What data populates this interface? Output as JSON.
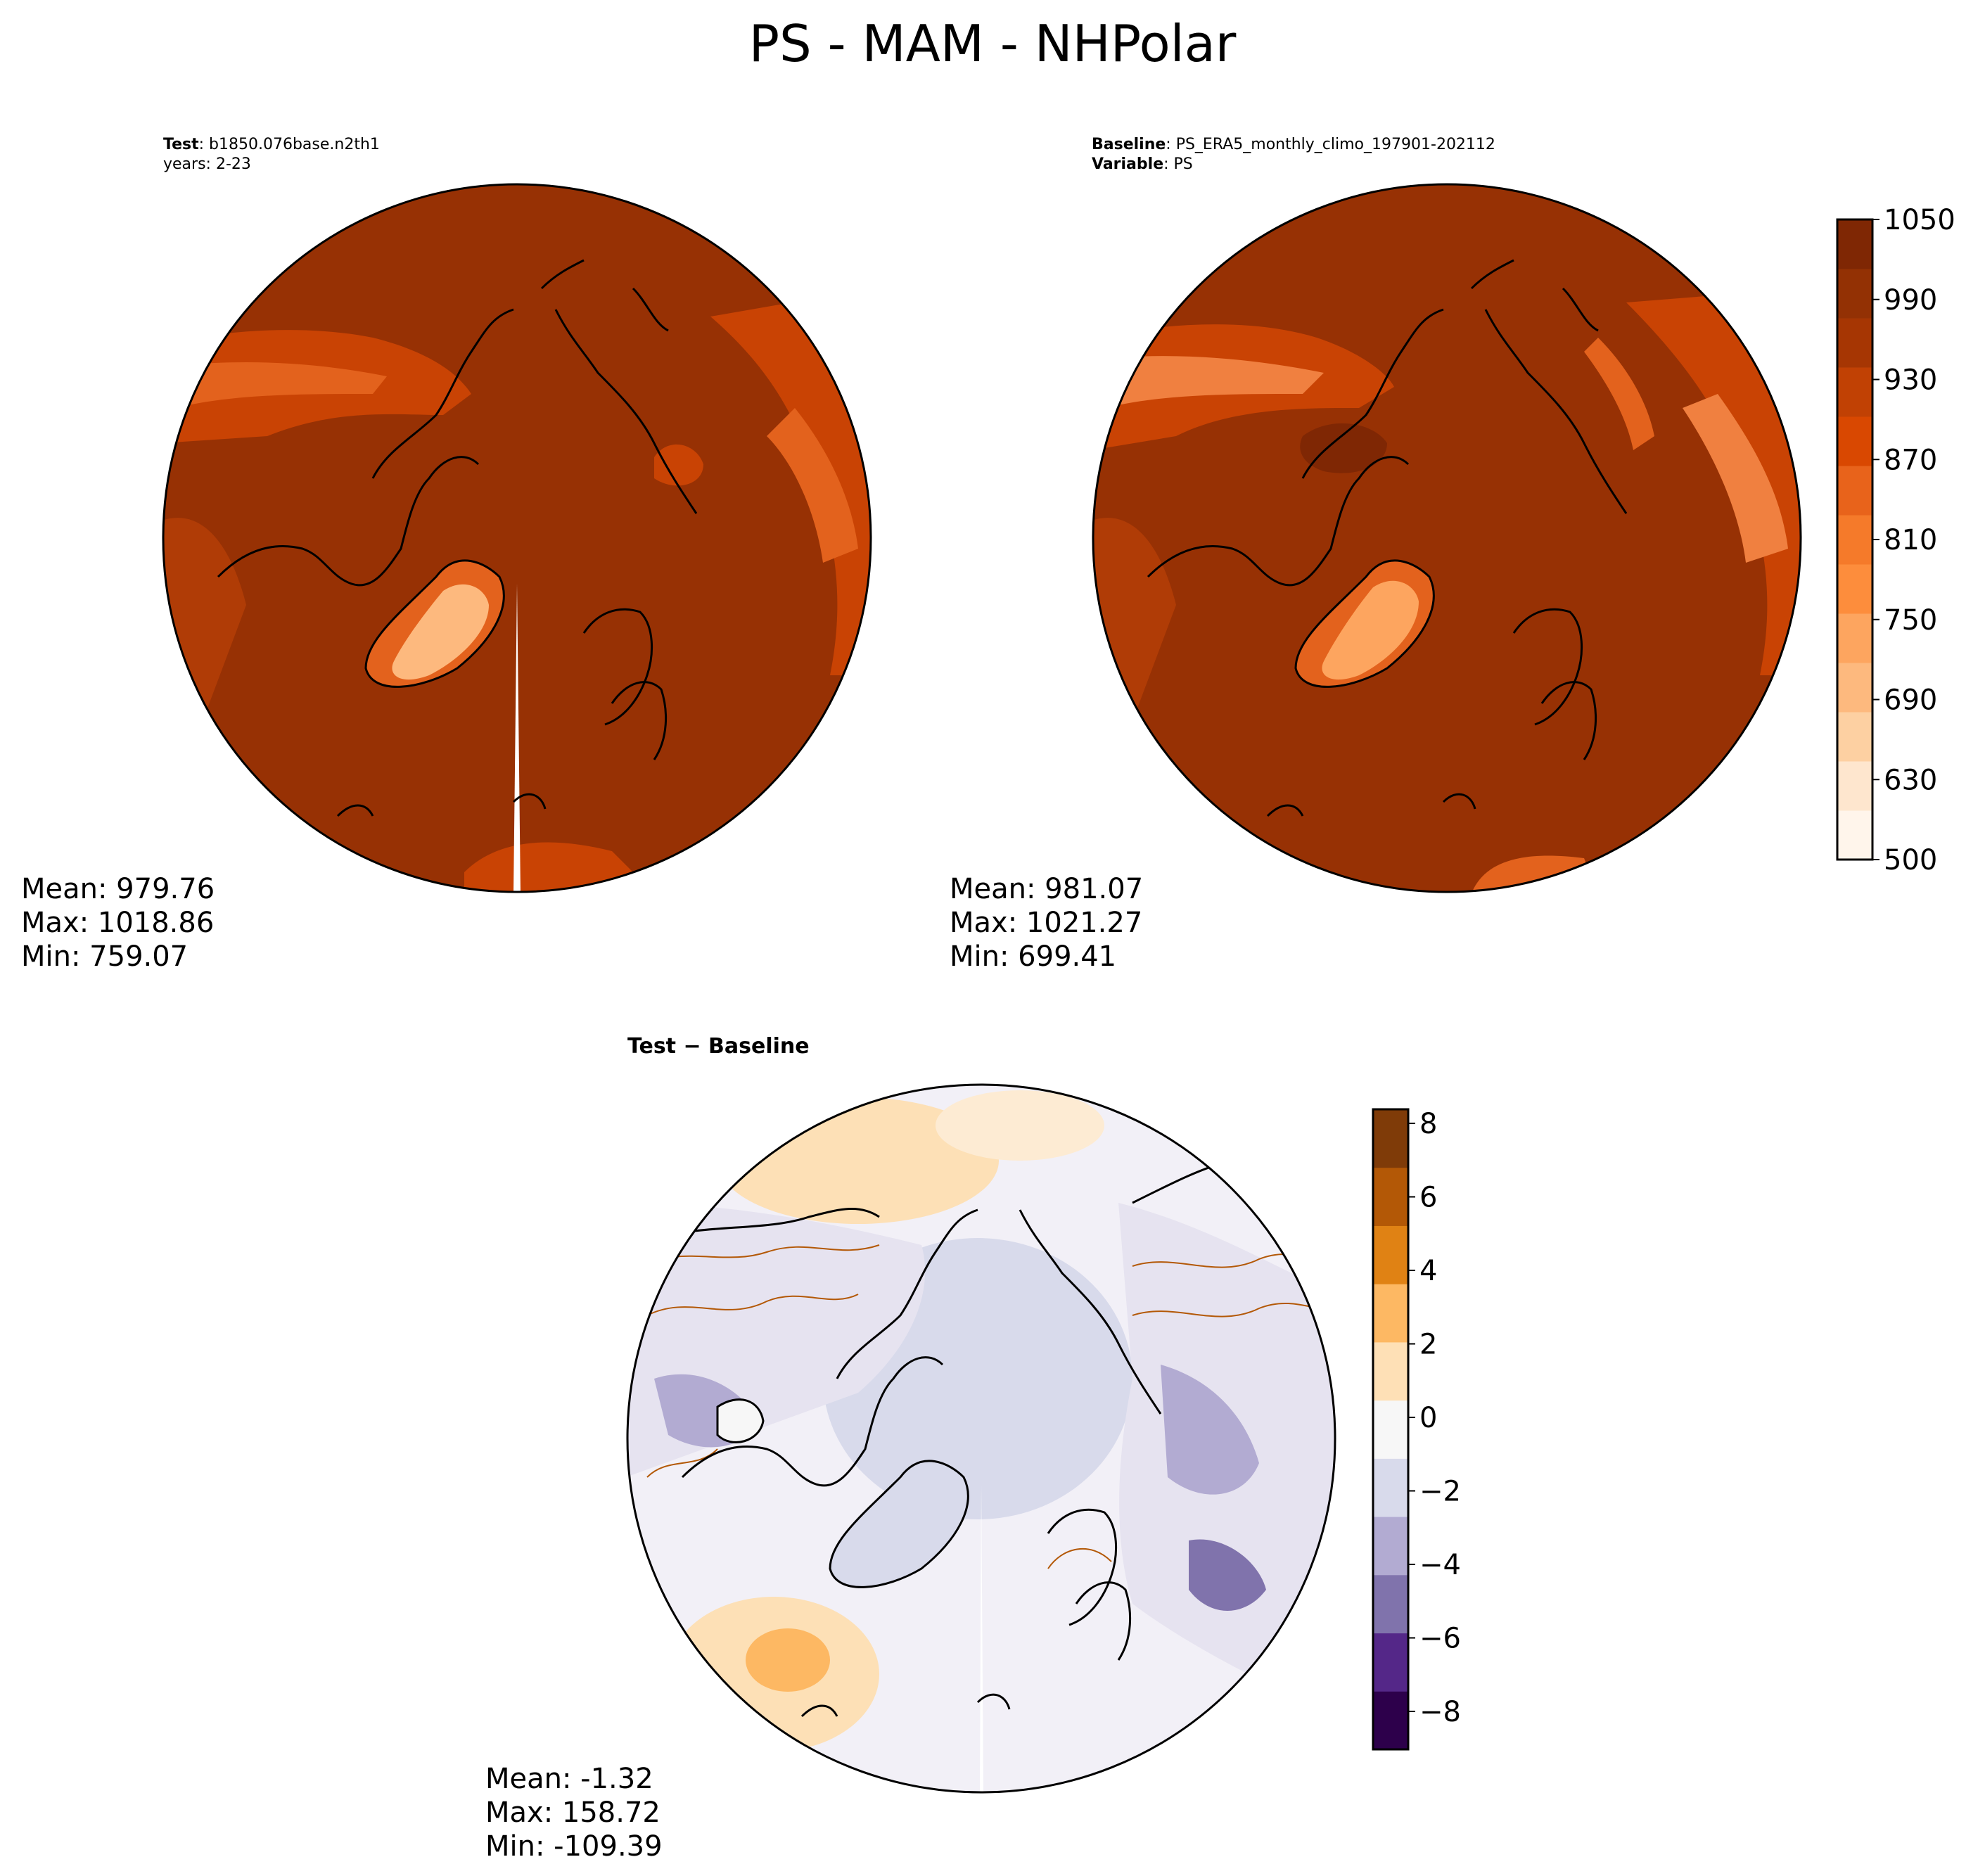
{
  "figure": {
    "title": "PS - MAM - NHPolar"
  },
  "test_panel": {
    "label_bold": "Test",
    "label_text": ": b1850.076base.n2th1",
    "years": "years: 2-23",
    "stats": {
      "mean": "Mean: 979.76",
      "max": "Max: 1018.86",
      "min": "Min: 759.07"
    }
  },
  "baseline_panel": {
    "label_bold": "Baseline",
    "label_text": ": PS_ERA5_monthly_climo_197901-202112",
    "variable_bold": "Variable",
    "variable_text": ": PS",
    "stats": {
      "mean": "Mean: 981.07",
      "max": "Max: 1021.27",
      "min": "Min: 699.41"
    }
  },
  "diff_panel": {
    "title": "Test − Baseline",
    "stats": {
      "mean": "Mean: -1.32",
      "max": "Max: 158.72",
      "min": "Min: -109.39"
    }
  },
  "colorbar_main": {
    "ticks": [
      "1050",
      "990",
      "930",
      "870",
      "810",
      "750",
      "690",
      "630",
      "500"
    ],
    "colors": [
      "#fff5eb",
      "#fee6ce",
      "#fdd0a2",
      "#fdb97e",
      "#fda55f",
      "#fd8d3c",
      "#f57a2a",
      "#e8631b",
      "#d94801",
      "#c14104",
      "#a63603",
      "#933104",
      "#7f2704"
    ]
  },
  "colorbar_diff": {
    "ticks": [
      "8",
      "6",
      "4",
      "2",
      "0",
      "−2",
      "−4",
      "−6",
      "−8"
    ],
    "colors": [
      "#2d004b",
      "#542788",
      "#8073ac",
      "#b2abd2",
      "#d8daeb",
      "#f7f7f7",
      "#fee0b6",
      "#fdb863",
      "#e08214",
      "#b35806",
      "#7f3b08"
    ]
  },
  "map_colors": {
    "ocean_main": "#973104",
    "land_light": "#e8631b",
    "greenland": "#fdb97e",
    "diff_background": "#f2f0f7",
    "diff_positive": "#fde0b6",
    "diff_negative": "#d8daeb"
  }
}
